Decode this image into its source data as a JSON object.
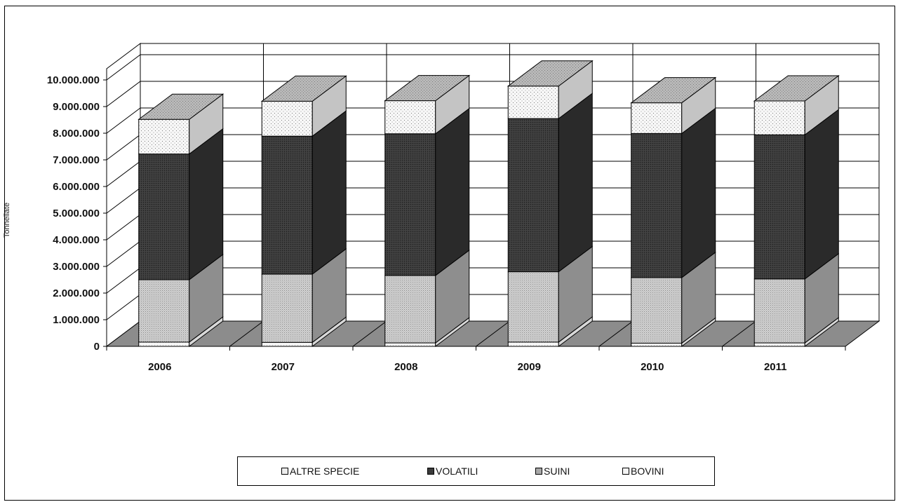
{
  "chart_data": {
    "type": "bar",
    "stacked": true,
    "three_d": true,
    "categories": [
      "2006",
      "2007",
      "2008",
      "2009",
      "2010",
      "2011"
    ],
    "series": [
      {
        "name": "BOVINI",
        "values": [
          160000,
          150000,
          130000,
          160000,
          120000,
          130000
        ]
      },
      {
        "name": "SUINI",
        "values": [
          2340000,
          2560000,
          2530000,
          2640000,
          2460000,
          2400000
        ]
      },
      {
        "name": "VOLATILI",
        "values": [
          4720000,
          5180000,
          5320000,
          5750000,
          5410000,
          5410000
        ]
      },
      {
        "name": "ALTRE SPECIE",
        "values": [
          1300000,
          1310000,
          1240000,
          1220000,
          1150000,
          1270000
        ]
      }
    ],
    "ylabel": "Tonnellate",
    "xlabel": "",
    "ylim": [
      0,
      10000000
    ],
    "yticks": [
      "0",
      "1.000.000",
      "2.000.000",
      "3.000.000",
      "4.000.000",
      "5.000.000",
      "6.000.000",
      "7.000.000",
      "8.000.000",
      "9.000.000",
      "10.000.000"
    ],
    "grid": true,
    "legend_position": "bottom",
    "legend_order": [
      "ALTRE  SPECIE",
      "VOLATILI",
      "SUINI",
      "BOVINI"
    ]
  },
  "colors": {
    "BOVINI": "#f4f4f4",
    "SUINI": "#c2c2c2",
    "VOLATILI": "#3a3a3a",
    "ALTRE SPECIE": "#ececec",
    "floor": "#8c8c8c"
  }
}
